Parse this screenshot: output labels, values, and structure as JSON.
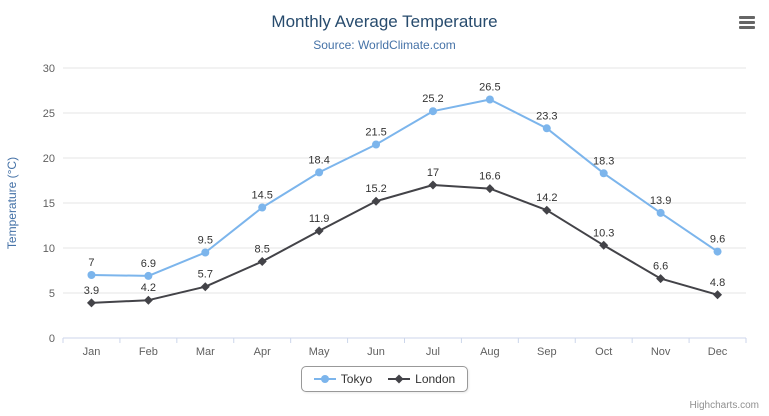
{
  "chart_data": {
    "type": "line",
    "title": "Monthly Average Temperature",
    "subtitle": "Source: WorldClimate.com",
    "categories": [
      "Jan",
      "Feb",
      "Mar",
      "Apr",
      "May",
      "Jun",
      "Jul",
      "Aug",
      "Sep",
      "Oct",
      "Nov",
      "Dec"
    ],
    "series": [
      {
        "name": "Tokyo",
        "color": "#7cb5ec",
        "marker": "circle",
        "values": [
          7,
          6.9,
          9.5,
          14.5,
          18.4,
          21.5,
          25.2,
          26.5,
          23.3,
          18.3,
          13.9,
          9.6
        ]
      },
      {
        "name": "London",
        "color": "#434348",
        "marker": "diamond",
        "values": [
          3.9,
          4.2,
          5.7,
          8.5,
          11.9,
          15.2,
          17,
          16.6,
          14.2,
          10.3,
          6.6,
          4.8
        ]
      }
    ],
    "xlabel": "",
    "ylabel": "Temperature (°C)",
    "ylim": [
      0,
      30
    ],
    "ytick_step": 5,
    "grid": true,
    "legend_position": "bottom",
    "data_labels": true
  },
  "colors": {
    "gridline": "#e6e6e6",
    "axis_line": "#ccd6eb",
    "tick_text": "#606060"
  },
  "credits": "Highcharts.com",
  "menu_icon": "hamburger-icon"
}
